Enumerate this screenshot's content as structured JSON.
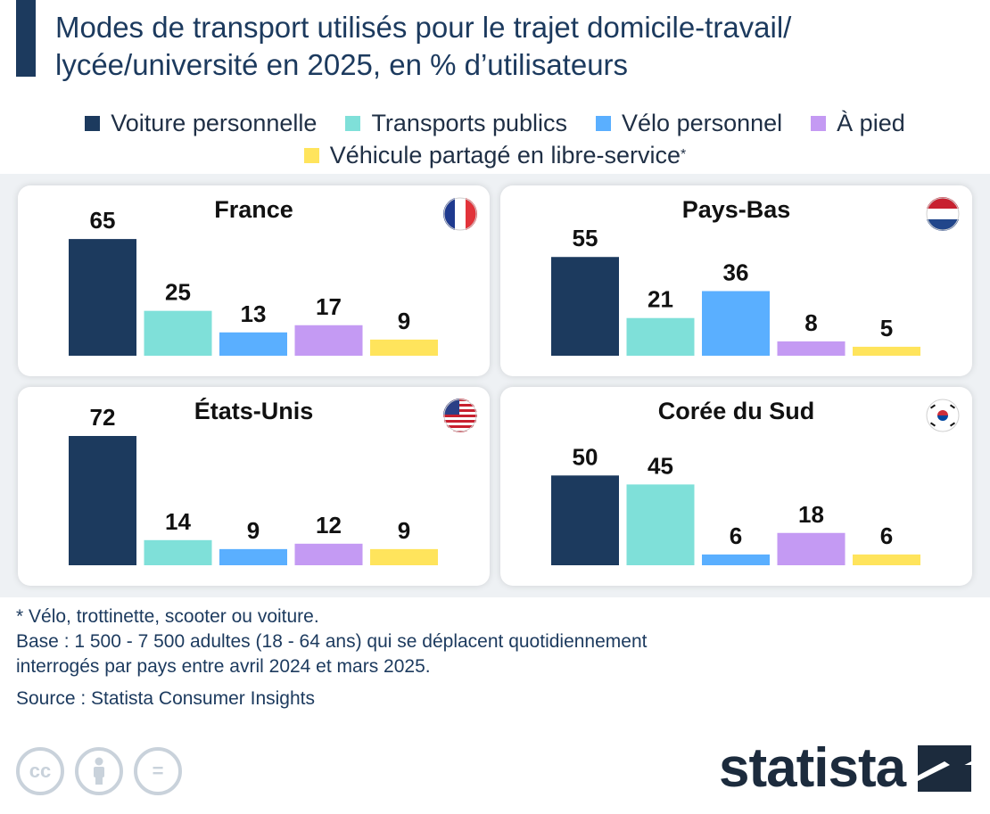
{
  "header": {
    "title_line1": "Modes de transport utilisés pour le trajet domicile-travail/",
    "title_line2": "lycée/université en 2025, en % d’utilisateurs"
  },
  "legend": {
    "car": "Voiture personnelle",
    "transit": "Transports publics",
    "bike": "Vélo personnel",
    "walk": "À pied",
    "shared": "Véhicule partagé en libre-service",
    "shared_note": "*"
  },
  "colors": {
    "car": "#1c3a5e",
    "transit": "#7fe0d9",
    "bike": "#5aafff",
    "walk": "#c49af3",
    "shared": "#ffe45c"
  },
  "chart_data": [
    {
      "type": "bar",
      "title": "France",
      "flag_icon": "france-flag-icon",
      "categories": [
        "Voiture personnelle",
        "Transports publics",
        "Vélo personnel",
        "À pied",
        "Véhicule partagé en libre-service"
      ],
      "values": [
        65,
        25,
        13,
        17,
        9
      ],
      "value_labels": [
        "65",
        "25",
        "13",
        "17",
        "9"
      ],
      "ylim": [
        0,
        72
      ]
    },
    {
      "type": "bar",
      "title": "Pays-Bas",
      "flag_icon": "netherlands-flag-icon",
      "categories": [
        "Voiture personnelle",
        "Transports publics",
        "Vélo personnel",
        "À pied",
        "Véhicule partagé en libre-service"
      ],
      "values": [
        55,
        21,
        36,
        8,
        5
      ],
      "value_labels": [
        "55",
        "21",
        "36",
        "8",
        "5"
      ],
      "ylim": [
        0,
        72
      ]
    },
    {
      "type": "bar",
      "title": "États-Unis",
      "flag_icon": "usa-flag-icon",
      "categories": [
        "Voiture personnelle",
        "Transports publics",
        "Vélo personnel",
        "À pied",
        "Véhicule partagé en libre-service"
      ],
      "values": [
        72,
        14,
        9,
        12,
        9
      ],
      "value_labels": [
        "72",
        "14",
        "9",
        "12",
        "9"
      ],
      "ylim": [
        0,
        72
      ]
    },
    {
      "type": "bar",
      "title": "Corée du Sud",
      "flag_icon": "south-korea-flag-icon",
      "categories": [
        "Voiture personnelle",
        "Transports publics",
        "Vélo personnel",
        "À pied",
        "Véhicule partagé en libre-service"
      ],
      "values": [
        50,
        45,
        6,
        18,
        6
      ],
      "value_labels": [
        "50",
        "45",
        "6",
        "18",
        "6"
      ],
      "ylim": [
        0,
        72
      ]
    }
  ],
  "footer": {
    "note": "* Vélo, trottinette, scooter ou voiture.",
    "base_line1": "Base : 1 500 - 7 500 adultes (18 - 64 ans) qui se déplacent quotidiennement",
    "base_line2": "interrogés par pays entre avril 2024 et mars 2025.",
    "source": "Source : Statista Consumer Insights"
  },
  "license_icons": [
    "cc-icon",
    "by-icon",
    "nd-icon"
  ],
  "license_glyphs": [
    "cc",
    "=",
    ""
  ],
  "brand": {
    "name": "statista"
  }
}
